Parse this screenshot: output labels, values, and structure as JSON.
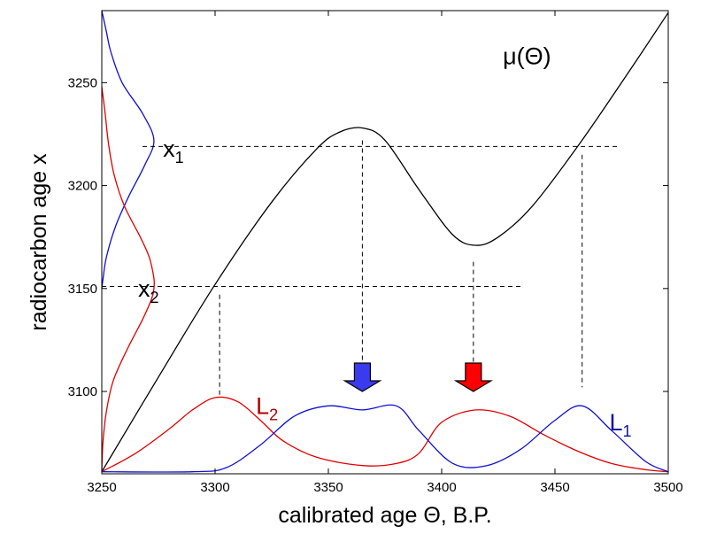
{
  "chart_data": {
    "type": "line",
    "xlabel": "calibrated age Θ,  B.P.",
    "ylabel": "radiocarbon age x",
    "xlim": [
      3250,
      3500
    ],
    "ylim": [
      3060,
      3285
    ],
    "xticks": [
      "3250",
      "3300",
      "3350",
      "3400",
      "3450",
      "3500"
    ],
    "yticks": [
      "3100",
      "3150",
      "3200",
      "3250"
    ],
    "grid": false,
    "legend": "none",
    "colors": {
      "mu": "#000000",
      "L1": "#1010d0",
      "L2": "#e00000",
      "dash": "#000000"
    },
    "series": [
      {
        "name": "μ(Θ)",
        "color": "#000000",
        "x": [
          3250,
          3275,
          3300,
          3325,
          3345,
          3355,
          3365,
          3375,
          3390,
          3405,
          3415,
          3425,
          3440,
          3460,
          3480,
          3500
        ],
        "y": [
          3061,
          3107,
          3152,
          3192,
          3218,
          3226,
          3228,
          3222,
          3198,
          3176,
          3171,
          3175,
          3190,
          3219,
          3251,
          3284
        ]
      },
      {
        "name": "L2",
        "color": "#e00000",
        "x": [
          3250,
          3265,
          3280,
          3290,
          3300,
          3310,
          3320,
          3330,
          3345,
          3365,
          3380,
          3390,
          3400,
          3415,
          3430,
          3445,
          3460,
          3475,
          3490,
          3500
        ],
        "y": [
          3061,
          3070,
          3082,
          3091,
          3097,
          3095,
          3086,
          3076,
          3068,
          3064,
          3065,
          3070,
          3085,
          3091,
          3088,
          3079,
          3071,
          3065,
          3062,
          3061
        ]
      },
      {
        "name": "L1",
        "color": "#1010d0",
        "x": [
          3250,
          3290,
          3305,
          3320,
          3335,
          3350,
          3365,
          3380,
          3390,
          3405,
          3420,
          3435,
          3450,
          3462,
          3475,
          3490,
          3500
        ],
        "y": [
          3061,
          3061,
          3063,
          3074,
          3088,
          3093,
          3091,
          3093,
          3081,
          3065,
          3064,
          3072,
          3086,
          3093,
          3081,
          3066,
          3061
        ]
      },
      {
        "name": "likelihood x1 (on y axis)",
        "color": "#1010d0",
        "y": [
          3285,
          3275,
          3265,
          3250,
          3235,
          3222,
          3210,
          3195,
          3180,
          3165,
          3155,
          3150
        ],
        "w": [
          0,
          2,
          4,
          9,
          18,
          23,
          19,
          12,
          6,
          2,
          0.6,
          0
        ]
      },
      {
        "name": "likelihood x2 (on y axis)",
        "color": "#e00000",
        "y": [
          3248,
          3235,
          3220,
          3205,
          3190,
          3175,
          3165,
          3155,
          3150,
          3145,
          3135,
          3120,
          3105,
          3090,
          3075,
          3061
        ],
        "w": [
          0,
          1.5,
          3,
          5.5,
          10,
          17,
          21,
          23,
          23,
          22,
          18,
          11,
          5,
          2,
          0.5,
          0
        ]
      }
    ],
    "hlines": [
      {
        "y": 3219,
        "x1": 3268,
        "x2": 3478
      },
      {
        "y": 3151,
        "x1": 3250,
        "x2": 3435
      }
    ],
    "vlines": [
      {
        "x": 3365,
        "y1": 3222,
        "y2": 3112
      },
      {
        "x": 3414,
        "y1": 3163,
        "y2": 3107
      },
      {
        "x": 3462,
        "y1": 3215,
        "y2": 3102
      },
      {
        "x": 3302,
        "y1": 3147,
        "y2": 3098
      }
    ],
    "arrows": [
      {
        "x": 3365,
        "y": 3100,
        "color": "#3a3aee"
      },
      {
        "x": 3414,
        "y": 3100,
        "color": "#ff0000"
      }
    ],
    "annotations": {
      "mu": "μ(Θ)",
      "x1_main": "x",
      "x1_sub": "1",
      "x2_main": "x",
      "x2_sub": "2",
      "L2_main": "L",
      "L2_sub": "2",
      "L1_main": "L",
      "L1_sub": "1"
    }
  }
}
